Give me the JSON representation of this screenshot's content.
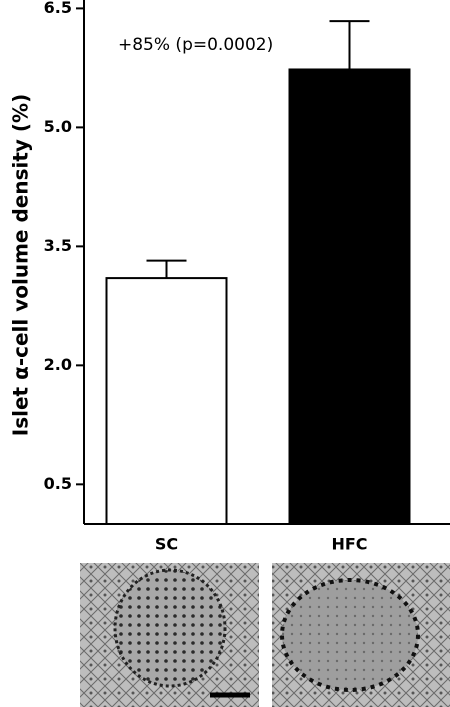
{
  "chart_data": {
    "type": "bar",
    "ylabel": "Islet α-cell volume density (%)",
    "annotation": "+85% (p=0.0002)",
    "categories": [
      "SC",
      "HFC"
    ],
    "values": [
      3.1,
      5.73
    ],
    "errors": [
      0.22,
      0.61
    ],
    "colors": [
      "#ffffff",
      "#000000"
    ],
    "ylim": [
      0,
      6.5
    ],
    "yticks": [
      0.5,
      {
        "value": 2,
        "label": "2.0"
      },
      3.5,
      {
        "value": 5,
        "label": "5.0"
      },
      6.5
    ]
  }
}
